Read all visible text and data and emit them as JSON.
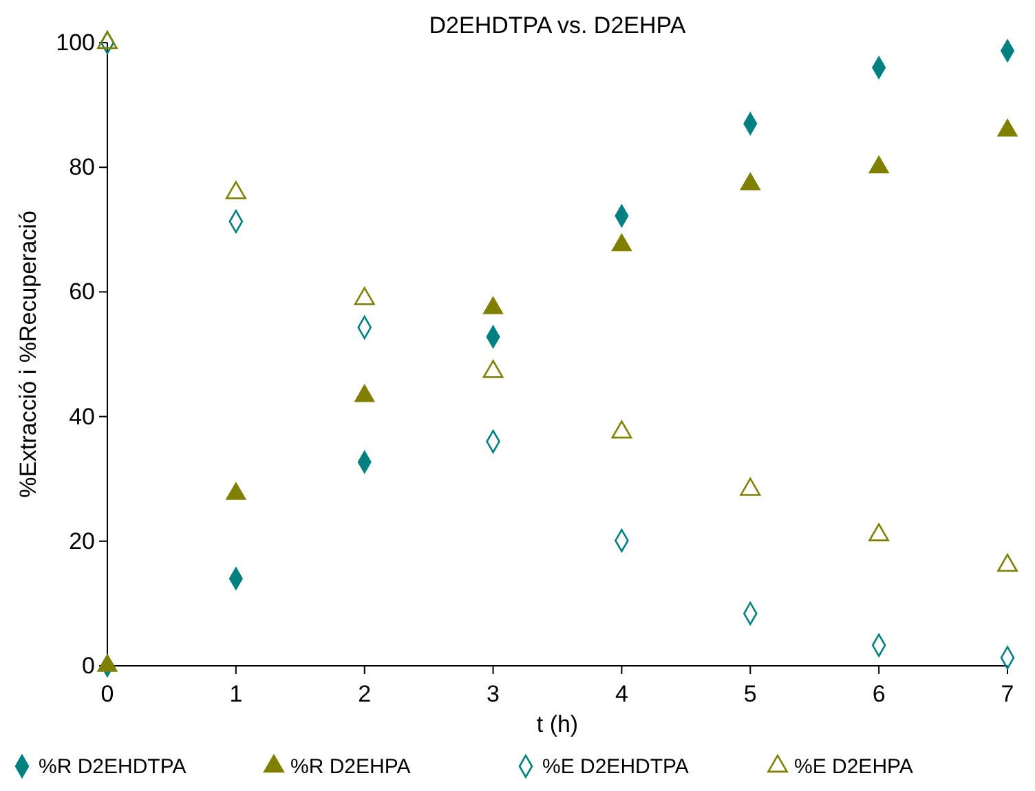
{
  "chart_data": {
    "type": "scatter",
    "title": "D2EHDTPA vs. D2EHPA",
    "xlabel": "t (h)",
    "ylabel": "%Extracció i %Recuperació",
    "x": [
      0,
      1,
      2,
      3,
      4,
      5,
      6,
      7
    ],
    "xlim": [
      0,
      7
    ],
    "xticks": [
      0,
      1,
      2,
      3,
      4,
      5,
      6,
      7
    ],
    "ylim": [
      0,
      100
    ],
    "yticks": [
      0,
      20,
      40,
      60,
      80,
      100
    ],
    "grid": false,
    "legend": "bottom",
    "series": [
      {
        "name": "%R D2EHDTPA",
        "color": "#008080",
        "marker": "diamond",
        "values": [
          0,
          14,
          32.7,
          52.8,
          72.2,
          87,
          96,
          98.7
        ]
      },
      {
        "name": "%R D2EHPA",
        "color": "#808000",
        "marker": "triangle",
        "values": [
          0,
          27.6,
          43.3,
          57.4,
          67.5,
          77.3,
          80,
          85.9
        ]
      },
      {
        "name": "%E D2EHDTPA",
        "color": "#008080",
        "marker": "diamond-open",
        "values": [
          100,
          71.3,
          54.3,
          36,
          20.1,
          8.4,
          3.3,
          1.3
        ]
      },
      {
        "name": "%E D2EHPA",
        "color": "#808000",
        "marker": "triangle-open",
        "values": [
          100,
          75.9,
          58.9,
          47.2,
          37.5,
          28.3,
          21,
          16.1
        ]
      }
    ]
  }
}
